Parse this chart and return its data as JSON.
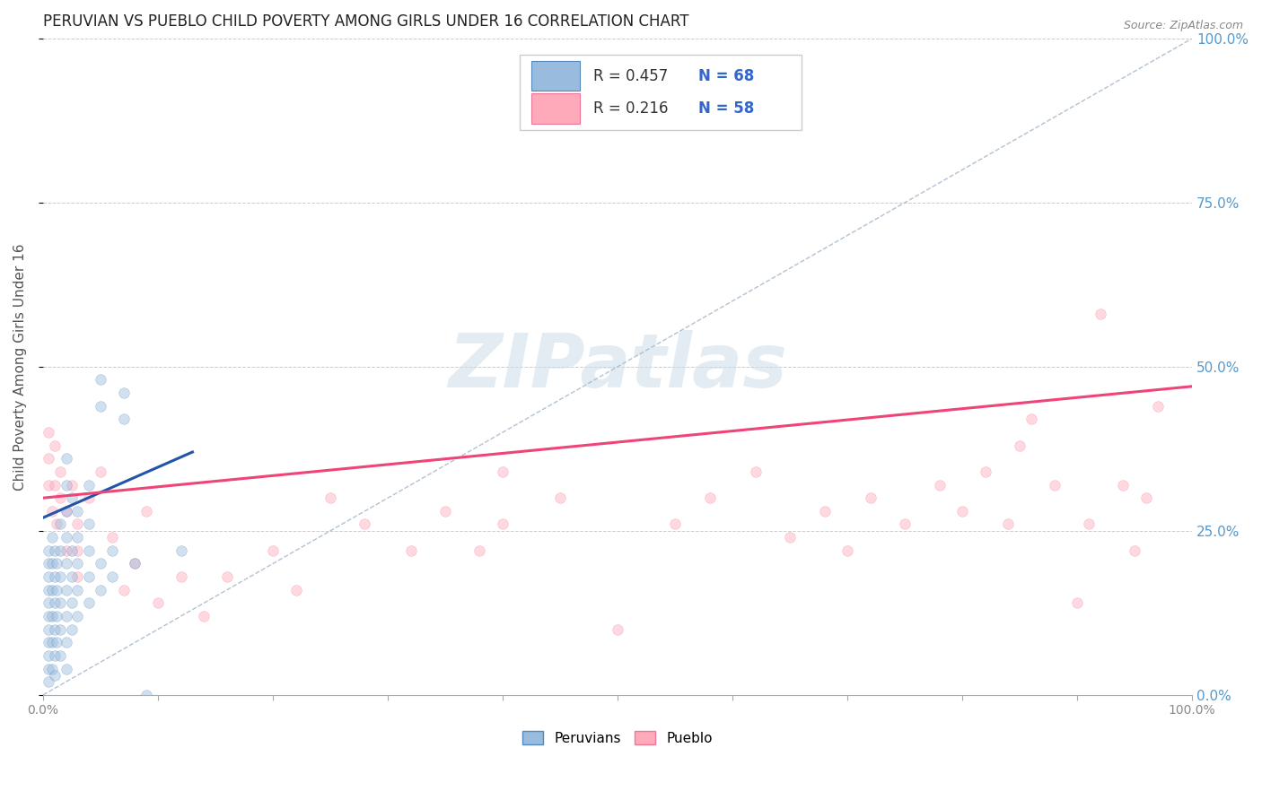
{
  "title": "PERUVIAN VS PUEBLO CHILD POVERTY AMONG GIRLS UNDER 16 CORRELATION CHART",
  "source": "Source: ZipAtlas.com",
  "ylabel": "Child Poverty Among Girls Under 16",
  "watermark": "ZIPatlas",
  "legend_blue_r": "R = 0.457",
  "legend_blue_n": "N = 68",
  "legend_pink_r": "R = 0.216",
  "legend_pink_n": "N = 58",
  "legend_label_blue": "Peruvians",
  "legend_label_pink": "Pueblo",
  "blue_color": "#99BBDD",
  "pink_color": "#FFAABB",
  "blue_edge_color": "#5588BB",
  "pink_edge_color": "#EE7799",
  "blue_line_color": "#2255AA",
  "pink_line_color": "#EE4477",
  "diag_line_color": "#AABBCC",
  "legend_r_color": "#333333",
  "legend_n_color": "#3366CC",
  "axis_tick_color": "#888888",
  "right_axis_color": "#5599CC",
  "ylabel_color": "#555555",
  "blue_scatter": [
    [
      0.005,
      0.06
    ],
    [
      0.005,
      0.08
    ],
    [
      0.005,
      0.1
    ],
    [
      0.005,
      0.12
    ],
    [
      0.005,
      0.14
    ],
    [
      0.005,
      0.16
    ],
    [
      0.005,
      0.18
    ],
    [
      0.005,
      0.2
    ],
    [
      0.005,
      0.22
    ],
    [
      0.005,
      0.04
    ],
    [
      0.005,
      0.02
    ],
    [
      0.008,
      0.08
    ],
    [
      0.008,
      0.12
    ],
    [
      0.008,
      0.16
    ],
    [
      0.008,
      0.2
    ],
    [
      0.008,
      0.24
    ],
    [
      0.008,
      0.04
    ],
    [
      0.01,
      0.06
    ],
    [
      0.01,
      0.1
    ],
    [
      0.01,
      0.14
    ],
    [
      0.01,
      0.18
    ],
    [
      0.01,
      0.22
    ],
    [
      0.01,
      0.03
    ],
    [
      0.012,
      0.08
    ],
    [
      0.012,
      0.12
    ],
    [
      0.012,
      0.16
    ],
    [
      0.012,
      0.2
    ],
    [
      0.015,
      0.1
    ],
    [
      0.015,
      0.14
    ],
    [
      0.015,
      0.18
    ],
    [
      0.015,
      0.22
    ],
    [
      0.015,
      0.26
    ],
    [
      0.015,
      0.06
    ],
    [
      0.02,
      0.08
    ],
    [
      0.02,
      0.12
    ],
    [
      0.02,
      0.16
    ],
    [
      0.02,
      0.2
    ],
    [
      0.02,
      0.24
    ],
    [
      0.02,
      0.28
    ],
    [
      0.02,
      0.32
    ],
    [
      0.02,
      0.36
    ],
    [
      0.02,
      0.04
    ],
    [
      0.025,
      0.1
    ],
    [
      0.025,
      0.14
    ],
    [
      0.025,
      0.18
    ],
    [
      0.025,
      0.22
    ],
    [
      0.025,
      0.3
    ],
    [
      0.03,
      0.12
    ],
    [
      0.03,
      0.16
    ],
    [
      0.03,
      0.2
    ],
    [
      0.03,
      0.24
    ],
    [
      0.03,
      0.28
    ],
    [
      0.04,
      0.14
    ],
    [
      0.04,
      0.18
    ],
    [
      0.04,
      0.22
    ],
    [
      0.04,
      0.26
    ],
    [
      0.04,
      0.32
    ],
    [
      0.05,
      0.16
    ],
    [
      0.05,
      0.2
    ],
    [
      0.05,
      0.44
    ],
    [
      0.05,
      0.48
    ],
    [
      0.06,
      0.18
    ],
    [
      0.06,
      0.22
    ],
    [
      0.07,
      0.42
    ],
    [
      0.07,
      0.46
    ],
    [
      0.08,
      0.2
    ],
    [
      0.09,
      0.0
    ],
    [
      0.12,
      0.22
    ]
  ],
  "pink_scatter": [
    [
      0.005,
      0.32
    ],
    [
      0.005,
      0.36
    ],
    [
      0.005,
      0.4
    ],
    [
      0.008,
      0.28
    ],
    [
      0.01,
      0.32
    ],
    [
      0.01,
      0.38
    ],
    [
      0.012,
      0.26
    ],
    [
      0.015,
      0.3
    ],
    [
      0.015,
      0.34
    ],
    [
      0.02,
      0.22
    ],
    [
      0.02,
      0.28
    ],
    [
      0.025,
      0.32
    ],
    [
      0.03,
      0.26
    ],
    [
      0.03,
      0.22
    ],
    [
      0.03,
      0.18
    ],
    [
      0.04,
      0.3
    ],
    [
      0.05,
      0.34
    ],
    [
      0.06,
      0.24
    ],
    [
      0.07,
      0.16
    ],
    [
      0.08,
      0.2
    ],
    [
      0.09,
      0.28
    ],
    [
      0.1,
      0.14
    ],
    [
      0.12,
      0.18
    ],
    [
      0.14,
      0.12
    ],
    [
      0.16,
      0.18
    ],
    [
      0.2,
      0.22
    ],
    [
      0.22,
      0.16
    ],
    [
      0.25,
      0.3
    ],
    [
      0.28,
      0.26
    ],
    [
      0.32,
      0.22
    ],
    [
      0.35,
      0.28
    ],
    [
      0.38,
      0.22
    ],
    [
      0.4,
      0.34
    ],
    [
      0.4,
      0.26
    ],
    [
      0.45,
      0.3
    ],
    [
      0.5,
      0.1
    ],
    [
      0.55,
      0.26
    ],
    [
      0.58,
      0.3
    ],
    [
      0.62,
      0.34
    ],
    [
      0.65,
      0.24
    ],
    [
      0.68,
      0.28
    ],
    [
      0.7,
      0.22
    ],
    [
      0.72,
      0.3
    ],
    [
      0.75,
      0.26
    ],
    [
      0.78,
      0.32
    ],
    [
      0.8,
      0.28
    ],
    [
      0.82,
      0.34
    ],
    [
      0.84,
      0.26
    ],
    [
      0.85,
      0.38
    ],
    [
      0.86,
      0.42
    ],
    [
      0.88,
      0.32
    ],
    [
      0.9,
      0.14
    ],
    [
      0.91,
      0.26
    ],
    [
      0.92,
      0.58
    ],
    [
      0.94,
      0.32
    ],
    [
      0.95,
      0.22
    ],
    [
      0.96,
      0.3
    ],
    [
      0.97,
      0.44
    ]
  ],
  "blue_line": [
    [
      0.0,
      0.27
    ],
    [
      0.13,
      0.37
    ]
  ],
  "pink_line": [
    [
      0.0,
      0.3
    ],
    [
      1.0,
      0.47
    ]
  ],
  "diag_line": [
    [
      0.0,
      0.0
    ],
    [
      1.0,
      1.0
    ]
  ],
  "xlim": [
    0.0,
    1.0
  ],
  "ylim": [
    0.0,
    1.0
  ],
  "yticks": [
    0.0,
    0.25,
    0.5,
    0.75,
    1.0
  ],
  "ytick_labels": [
    "0.0%",
    "25.0%",
    "50.0%",
    "75.0%",
    "100.0%"
  ],
  "xtick_first": "0.0%",
  "xtick_last": "100.0%",
  "title_fontsize": 12,
  "ylabel_fontsize": 11,
  "source_fontsize": 9,
  "marker_size": 70,
  "marker_alpha": 0.45
}
